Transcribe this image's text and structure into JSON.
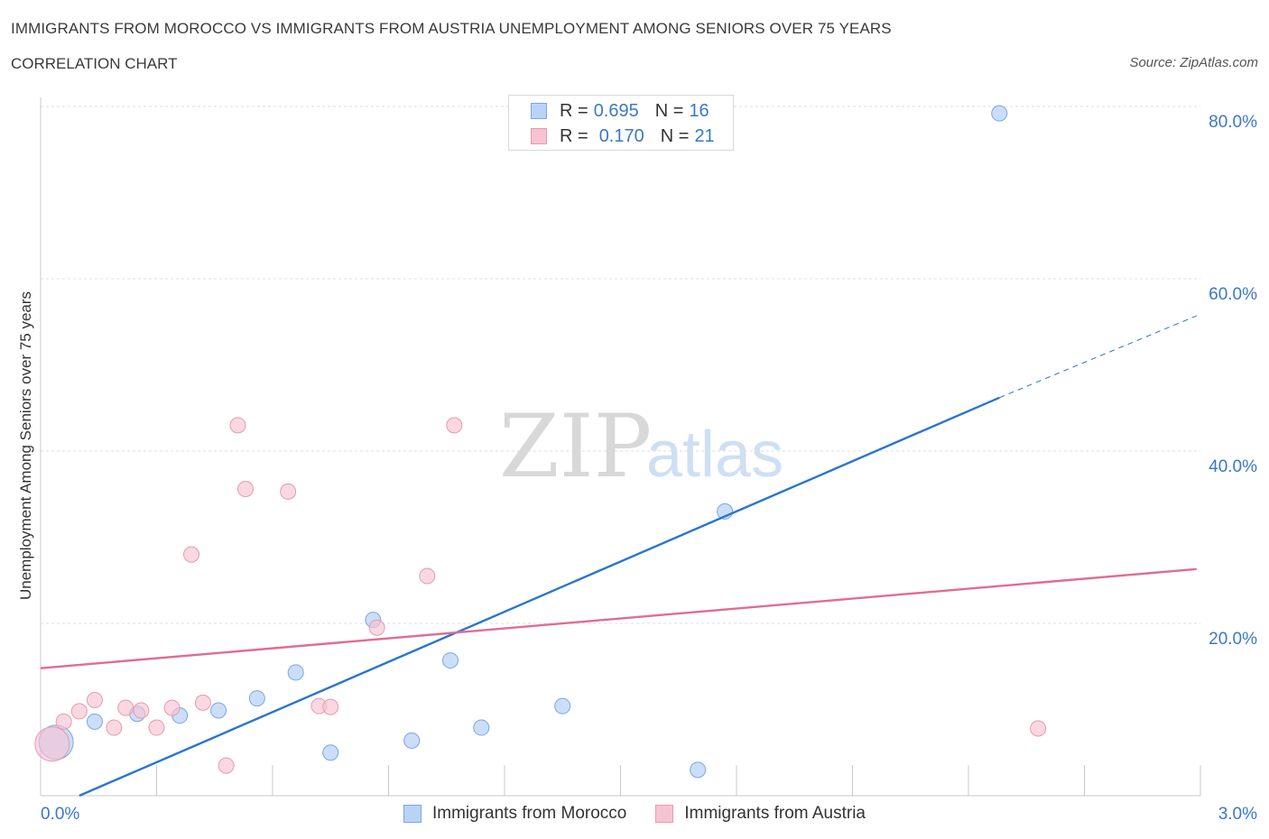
{
  "title": "IMMIGRANTS FROM MOROCCO VS IMMIGRANTS FROM AUSTRIA UNEMPLOYMENT AMONG SENIORS OVER 75 YEARS",
  "subtitle": "CORRELATION CHART",
  "source": "Source: ZipAtlas.com",
  "watermark": {
    "zip": "ZIP",
    "atlas": "atlas"
  },
  "legend_top": {
    "r_label": "R =",
    "n_label": "N =",
    "rows": [
      {
        "r": "0.695",
        "n": "16"
      },
      {
        "r": "0.170",
        "n": "21"
      }
    ]
  },
  "colors": {
    "morocco_fill": "#b9d3f7",
    "morocco_stroke": "#7aa6e2",
    "morocco_line": "#2a74d0",
    "austria_fill": "#f7c3d3",
    "austria_stroke": "#e899b2",
    "austria_line": "#e06c93",
    "tick_label": "#3a78c9",
    "grid": "#dddddd"
  },
  "chart_data": {
    "type": "scatter",
    "title": "IMMIGRANTS FROM MOROCCO VS IMMIGRANTS FROM AUSTRIA UNEMPLOYMENT AMONG SENIORS OVER 75 YEARS",
    "xlabel": "",
    "ylabel": "Unemployment Among Seniors over 75 years",
    "xlim": [
      0,
      3.0
    ],
    "ylim": [
      0,
      80
    ],
    "x_tick_labels": [
      "0.0%",
      "3.0%"
    ],
    "y_ticks": [
      20,
      40,
      60,
      80
    ],
    "y_tick_labels": [
      "20.0%",
      "40.0%",
      "60.0%",
      "80.0%"
    ],
    "grid": true,
    "legend_position": "bottom",
    "series": [
      {
        "name": "Immigrants from Morocco",
        "R": 0.695,
        "N": 16,
        "points": [
          {
            "x": 0.04,
            "y": 6.2,
            "size": "large"
          },
          {
            "x": 0.14,
            "y": 8.6
          },
          {
            "x": 0.25,
            "y": 9.5
          },
          {
            "x": 0.36,
            "y": 9.3
          },
          {
            "x": 0.46,
            "y": 9.9
          },
          {
            "x": 0.56,
            "y": 11.3
          },
          {
            "x": 0.66,
            "y": 14.3
          },
          {
            "x": 0.75,
            "y": 5.0
          },
          {
            "x": 0.86,
            "y": 20.4
          },
          {
            "x": 0.96,
            "y": 6.4
          },
          {
            "x": 1.06,
            "y": 15.7
          },
          {
            "x": 1.14,
            "y": 7.9
          },
          {
            "x": 1.35,
            "y": 10.4
          },
          {
            "x": 1.7,
            "y": 3.0
          },
          {
            "x": 1.77,
            "y": 33.0
          },
          {
            "x": 2.48,
            "y": 79.2
          }
        ],
        "trend": {
          "x0": 0.1,
          "y0": 0.0,
          "x1": 2.48,
          "y1": 46.2,
          "dash_to_x": 2.99,
          "dash_to_y": 55.7
        }
      },
      {
        "name": "Immigrants from Austria",
        "R": 0.17,
        "N": 21,
        "points": [
          {
            "x": 0.03,
            "y": 6.0,
            "size": "large"
          },
          {
            "x": 0.06,
            "y": 8.6
          },
          {
            "x": 0.1,
            "y": 9.8
          },
          {
            "x": 0.14,
            "y": 11.1
          },
          {
            "x": 0.19,
            "y": 7.9
          },
          {
            "x": 0.22,
            "y": 10.2
          },
          {
            "x": 0.26,
            "y": 9.9
          },
          {
            "x": 0.3,
            "y": 7.9
          },
          {
            "x": 0.34,
            "y": 10.2
          },
          {
            "x": 0.39,
            "y": 28.0
          },
          {
            "x": 0.42,
            "y": 10.8
          },
          {
            "x": 0.48,
            "y": 3.5
          },
          {
            "x": 0.51,
            "y": 43.0
          },
          {
            "x": 0.53,
            "y": 35.6
          },
          {
            "x": 0.64,
            "y": 35.3
          },
          {
            "x": 0.72,
            "y": 10.4
          },
          {
            "x": 0.75,
            "y": 10.3
          },
          {
            "x": 0.87,
            "y": 19.5
          },
          {
            "x": 1.0,
            "y": 25.5
          },
          {
            "x": 1.07,
            "y": 43.0
          },
          {
            "x": 2.58,
            "y": 7.8
          }
        ],
        "trend": {
          "x0": 0.0,
          "y0": 14.8,
          "x1": 2.99,
          "y1": 26.3
        }
      }
    ]
  }
}
